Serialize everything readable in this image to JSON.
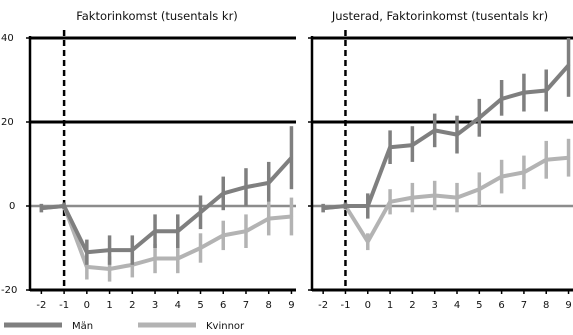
{
  "chart_data": [
    {
      "type": "line",
      "title": "Faktorinkomst (tusentals kr)",
      "x": [
        -2,
        -1,
        0,
        1,
        2,
        3,
        4,
        5,
        6,
        7,
        8,
        9
      ],
      "xlim": [
        -2.5,
        9.2
      ],
      "ylim": [
        -20,
        40
      ],
      "yticks": [
        -20,
        0,
        20,
        40
      ],
      "event_x": -1,
      "grid": "horizontal at ticks",
      "series": [
        {
          "name": "Män",
          "color": "#7f7f7f",
          "values": [
            -0.5,
            0,
            -11,
            -10.5,
            -10.5,
            -6,
            -6,
            -1.5,
            3,
            4.5,
            5.5,
            11.5
          ],
          "lower": [
            -1.5,
            -0.8,
            -14,
            -14,
            -14,
            -10,
            -10,
            -5.5,
            -1,
            0,
            1,
            4
          ],
          "upper": [
            0.5,
            0.8,
            -8,
            -7,
            -7,
            -2,
            -2,
            2.5,
            7,
            9,
            10.5,
            19
          ]
        },
        {
          "name": "Kvinnor",
          "color": "#b3b3b3",
          "values": [
            -0.5,
            0,
            -14.5,
            -15,
            -14,
            -12.5,
            -12.5,
            -10,
            -7,
            -6,
            -3,
            -2.5
          ],
          "lower": [
            -1.5,
            -0.8,
            -17.5,
            -18,
            -17,
            -16,
            -16,
            -13.5,
            -10.5,
            -10,
            -7,
            -7
          ],
          "upper": [
            0.5,
            0.8,
            -11.5,
            -12,
            -11,
            -9,
            -9,
            -6.5,
            -3.5,
            -2,
            1,
            2
          ]
        }
      ]
    },
    {
      "type": "line",
      "title": "Justerad, Faktorinkomst (tusentals kr)",
      "x": [
        -2,
        -1,
        0,
        1,
        2,
        3,
        4,
        5,
        6,
        7,
        8,
        9
      ],
      "xlim": [
        -2.5,
        9.2
      ],
      "ylim": [
        -20,
        40
      ],
      "yticks": [
        -20,
        0,
        20,
        40
      ],
      "event_x": -1,
      "grid": "horizontal at ticks",
      "series": [
        {
          "name": "Män",
          "color": "#7f7f7f",
          "values": [
            -0.5,
            0,
            0,
            14,
            14.5,
            18,
            17,
            21,
            25.5,
            27,
            27.5,
            33.5
          ],
          "lower": [
            -1.5,
            -0.8,
            -3,
            10,
            10.5,
            14,
            12.5,
            16.5,
            21.5,
            22.5,
            22.5,
            26
          ],
          "upper": [
            0.5,
            0.8,
            3,
            18,
            19,
            22,
            21.5,
            25.5,
            30,
            31.5,
            32.5,
            40
          ]
        },
        {
          "name": "Kvinnor",
          "color": "#b3b3b3",
          "values": [
            -0.5,
            0,
            -8.5,
            1,
            2,
            2.5,
            2,
            4,
            7,
            8,
            11,
            11.5
          ],
          "lower": [
            -1.5,
            -0.8,
            -10.5,
            -2,
            -1.5,
            -1,
            -1.5,
            0,
            3,
            4,
            6.5,
            7
          ],
          "upper": [
            0.5,
            0.8,
            -6.5,
            4,
            5.5,
            6,
            5.5,
            8,
            11,
            12,
            15.5,
            16
          ]
        }
      ]
    }
  ],
  "legend": [
    {
      "label": "Män",
      "color": "#7f7f7f"
    },
    {
      "label": "Kvinnor",
      "color": "#b3b3b3"
    }
  ],
  "y_tick_labels": [
    "40",
    "20",
    "0",
    "-20"
  ]
}
